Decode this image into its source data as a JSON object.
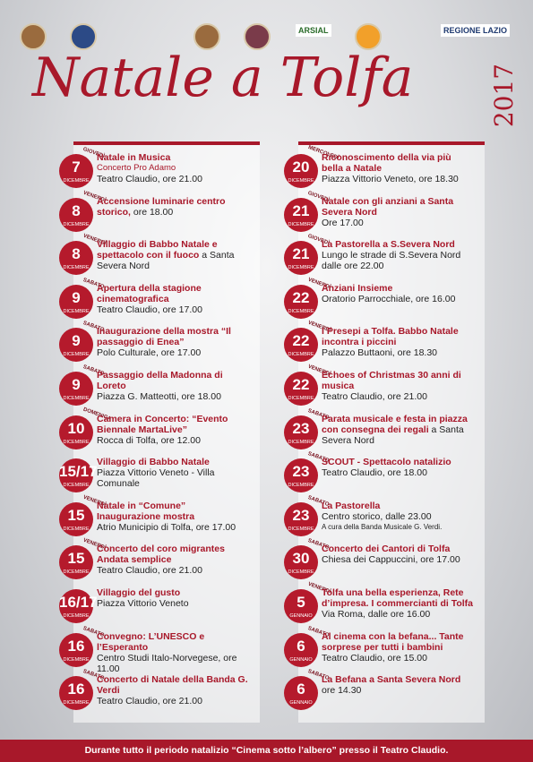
{
  "header": {
    "logos": [
      "ARSIAL",
      "REGIONE LAZIO"
    ],
    "title": "Natale a Tolfa",
    "year": "2017"
  },
  "left_events": [
    {
      "weekday": "GIOVEDÌ",
      "day": "7",
      "month": "DICEMBRE",
      "title": "Natale in Musica",
      "subtitle": "Concerto Pro Adamo",
      "details": [
        "Teatro Claudio, ore 21.00"
      ]
    },
    {
      "weekday": "VENERDÌ",
      "day": "8",
      "month": "DICEMBRE",
      "title": "Accensione luminarie centro storico,",
      "tail": "ore 18.00"
    },
    {
      "weekday": "VENERDÌ",
      "day": "8",
      "month": "DICEMBRE",
      "title": "Villaggio di Babbo Natale e spettacolo con il fuoco",
      "tail": "a Santa Severa Nord"
    },
    {
      "weekday": "SABATO",
      "day": "9",
      "month": "DICEMBRE",
      "title": "Apertura della stagione cinematografica",
      "details": [
        "Teatro Claudio, ore 17.00"
      ]
    },
    {
      "weekday": "SABATO",
      "day": "9",
      "month": "DICEMBRE",
      "title": "Inaugurazione della mostra “Il passaggio di Enea”",
      "details": [
        "Polo Culturale, ore 17.00"
      ]
    },
    {
      "weekday": "SABATO",
      "day": "9",
      "month": "DICEMBRE",
      "title": "Passaggio della Madonna di Loreto",
      "details": [
        "Piazza G. Matteotti, ore 18.00"
      ]
    },
    {
      "weekday": "DOMENICA",
      "day": "10",
      "month": "DICEMBRE",
      "title": "Camera in Concerto: “Evento Biennale MartaLive”",
      "details": [
        "Rocca di Tolfa, ore 12.00"
      ]
    },
    {
      "day": "15/17",
      "month": "DICEMBRE",
      "title": "Villaggio di Babbo Natale",
      "details": [
        "Piazza Vittorio Veneto - Villa Comunale"
      ]
    },
    {
      "weekday": "VENERDÌ",
      "day": "15",
      "month": "DICEMBRE",
      "title": "Natale in “Comune” Inaugurazione mostra",
      "details": [
        "Atrio Municipio di Tolfa, ore 17.00"
      ]
    },
    {
      "weekday": "VENERDÌ",
      "day": "15",
      "month": "DICEMBRE",
      "title": "Concerto del coro migrantes Andata semplice",
      "details": [
        "Teatro Claudio, ore 21.00"
      ]
    },
    {
      "day": "16/17",
      "month": "DICEMBRE",
      "title": "Villaggio del gusto",
      "details": [
        "Piazza Vittorio Veneto"
      ]
    },
    {
      "weekday": "SABATO",
      "day": "16",
      "month": "DICEMBRE",
      "title": "Convegno: L’UNESCO e l’Esperanto",
      "details": [
        "Centro Studi Italo-Norvegese, ore 11.00"
      ]
    },
    {
      "weekday": "SABATO",
      "day": "16",
      "month": "DICEMBRE",
      "title": "Concerto di Natale della Banda G. Verdi",
      "details": [
        "Teatro Claudio, ore 21.00"
      ]
    }
  ],
  "right_events": [
    {
      "weekday": "MERCOLEDÌ",
      "day": "20",
      "month": "DICEMBRE",
      "title": "Riconoscimento della via più bella a Natale",
      "details": [
        "Piazza Vittorio Veneto, ore 18.30"
      ]
    },
    {
      "weekday": "GIOVEDÌ",
      "day": "21",
      "month": "DICEMBRE",
      "title": "Natale con gli anziani a Santa Severa Nord",
      "details": [
        "Ore 17.00"
      ]
    },
    {
      "weekday": "GIOVEDÌ",
      "day": "21",
      "month": "DICEMBRE",
      "title": "La Pastorella a S.Severa Nord",
      "details": [
        "Lungo le strade di S.Severa Nord dalle ore 22.00"
      ]
    },
    {
      "weekday": "VENERDÌ",
      "day": "22",
      "month": "DICEMBRE",
      "title": "Anziani Insieme",
      "details": [
        "Oratorio Parrocchiale, ore 16.00"
      ]
    },
    {
      "weekday": "VENERDÌ",
      "day": "22",
      "month": "DICEMBRE",
      "title": "I Presepi a Tolfa. Babbo Natale incontra i piccini",
      "details": [
        "Palazzo Buttaoni, ore 18.30"
      ]
    },
    {
      "weekday": "VENERDÌ",
      "day": "22",
      "month": "DICEMBRE",
      "title": "Echoes of Christmas 30 anni di musica",
      "details": [
        "Teatro Claudio, ore 21.00"
      ]
    },
    {
      "weekday": "SABATO",
      "day": "23",
      "month": "DICEMBRE",
      "title": "Parata musicale e festa in piazza con consegna dei regali",
      "tail": "a Santa Severa Nord"
    },
    {
      "weekday": "SABATO",
      "day": "23",
      "month": "DICEMBRE",
      "title": "SCOUT - Spettacolo natalizio",
      "details": [
        "Teatro Claudio, ore 18.00"
      ]
    },
    {
      "weekday": "SABATO",
      "day": "23",
      "month": "DICEMBRE",
      "title": "La Pastorella",
      "details": [
        "Centro storico, dalle 23.00",
        "A cura della Banda Musicale G. Verdi."
      ]
    },
    {
      "weekday": "SABATO",
      "day": "30",
      "month": "DICEMBRE",
      "title": "Concerto dei Cantori di Tolfa",
      "details": [
        "Chiesa dei Cappuccini, ore 17.00"
      ]
    },
    {
      "weekday": "VENERDÌ",
      "day": "5",
      "month": "GENNAIO",
      "title": "Tolfa una bella esperienza, Rete d’impresa. I commercianti di Tolfa",
      "details": [
        "Via Roma, dalle ore 16.00"
      ]
    },
    {
      "weekday": "SABATO",
      "day": "6",
      "month": "GENNAIO",
      "title": "Al cinema con la befana... Tante sorprese per tutti i bambini",
      "details": [
        "Teatro Claudio, ore 15.00"
      ]
    },
    {
      "weekday": "SABATO",
      "day": "6",
      "month": "GENNAIO",
      "title": "La Befana a Santa Severa Nord",
      "details": [
        "ore 14.30"
      ]
    }
  ],
  "footer": "Durante tutto il periodo natalizio “Cinema sotto l’albero” presso il Teatro Claudio."
}
